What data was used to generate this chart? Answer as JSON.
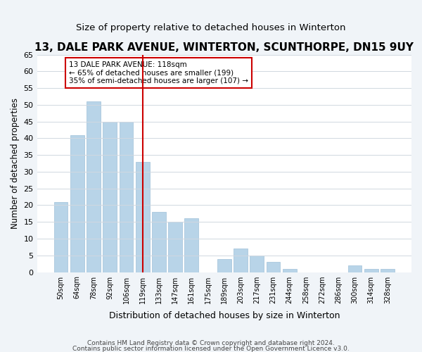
{
  "title": "13, DALE PARK AVENUE, WINTERTON, SCUNTHORPE, DN15 9UY",
  "subtitle": "Size of property relative to detached houses in Winterton",
  "xlabel": "Distribution of detached houses by size in Winterton",
  "ylabel": "Number of detached properties",
  "bar_labels": [
    "50sqm",
    "64sqm",
    "78sqm",
    "92sqm",
    "106sqm",
    "119sqm",
    "133sqm",
    "147sqm",
    "161sqm",
    "175sqm",
    "189sqm",
    "203sqm",
    "217sqm",
    "231sqm",
    "244sqm",
    "258sqm",
    "272sqm",
    "286sqm",
    "300sqm",
    "314sqm",
    "328sqm"
  ],
  "bar_values": [
    21,
    41,
    51,
    45,
    45,
    33,
    18,
    15,
    16,
    0,
    4,
    7,
    5,
    3,
    1,
    0,
    0,
    0,
    2,
    1,
    1
  ],
  "bar_color": "#b8d4e8",
  "bar_edge_color": "#a0c0d8",
  "marker_index": 5,
  "marker_color": "#cc0000",
  "annotation_title": "13 DALE PARK AVENUE: 118sqm",
  "annotation_line1": "← 65% of detached houses are smaller (199)",
  "annotation_line2": "35% of semi-detached houses are larger (107) →",
  "annotation_box_color": "#ffffff",
  "annotation_box_edge": "#cc0000",
  "ylim": [
    0,
    65
  ],
  "yticks": [
    0,
    5,
    10,
    15,
    20,
    25,
    30,
    35,
    40,
    45,
    50,
    55,
    60,
    65
  ],
  "footer1": "Contains HM Land Registry data © Crown copyright and database right 2024.",
  "footer2": "Contains public sector information licensed under the Open Government Licence v3.0.",
  "bg_color": "#f0f4f8",
  "plot_bg_color": "#ffffff"
}
